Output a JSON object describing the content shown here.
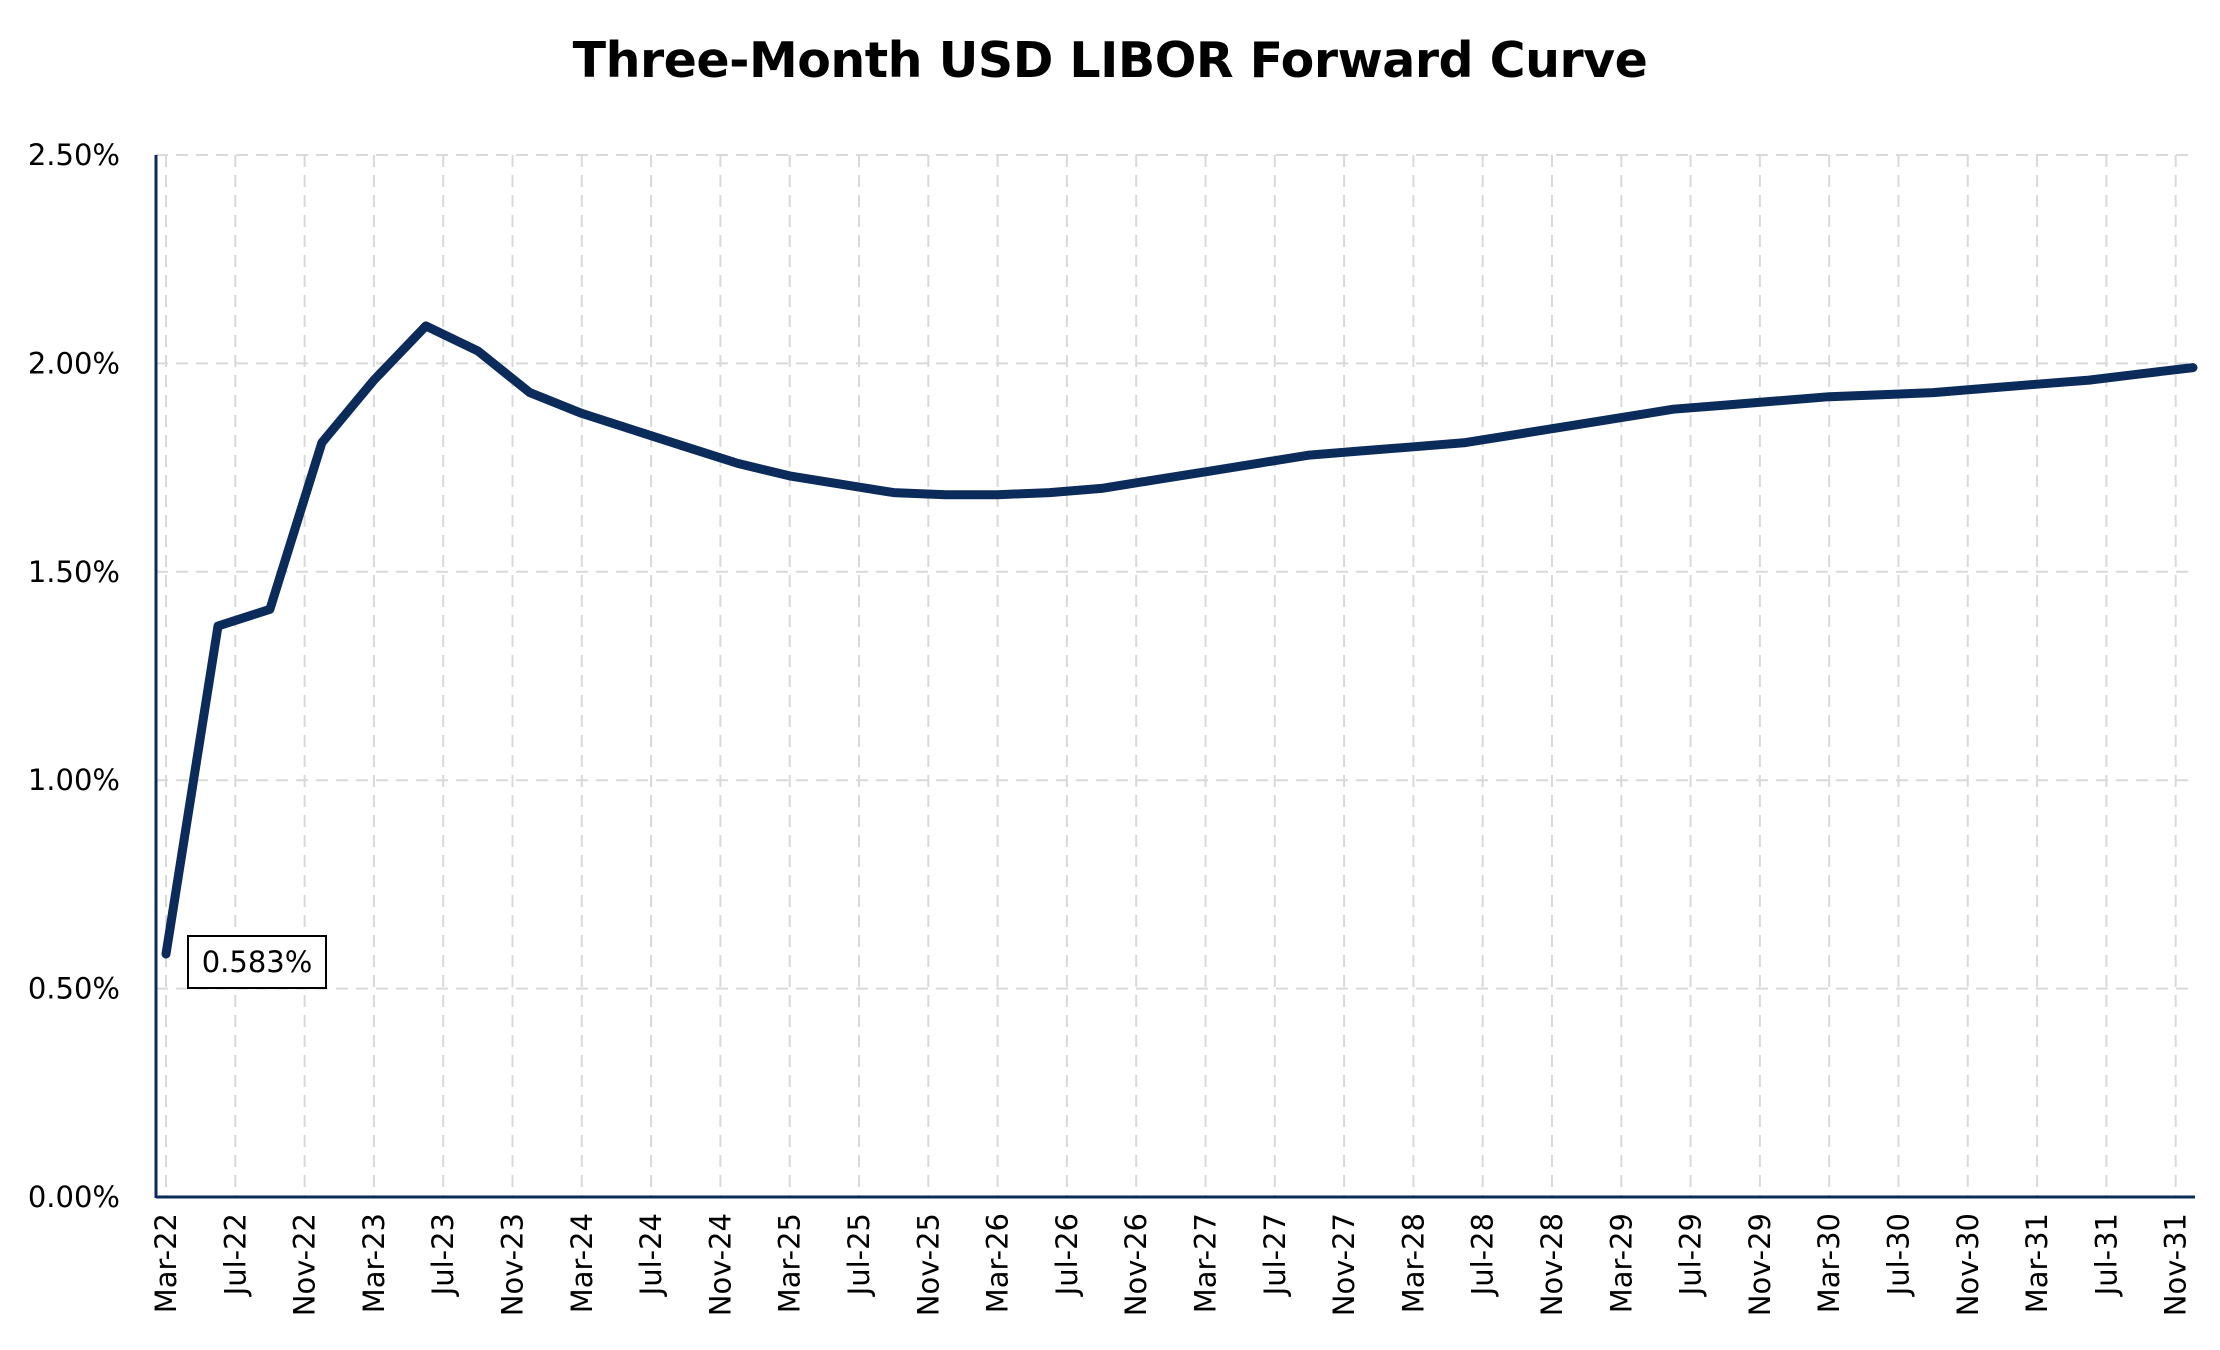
{
  "chart_data": {
    "type": "line",
    "title": "Three-Month USD LIBOR Forward Curve",
    "xlabel": "",
    "ylabel": "",
    "ylim": [
      0,
      2.5
    ],
    "yticks": [
      "0.00%",
      "0.50%",
      "1.00%",
      "1.50%",
      "2.00%",
      "2.50%"
    ],
    "ytick_values": [
      0,
      0.5,
      1.0,
      1.5,
      2.0,
      2.5
    ],
    "xlim": [
      "2022-03",
      "2031-12"
    ],
    "x_axis_type": "date",
    "xticks": [
      "Mar-22",
      "Jul-22",
      "Nov-22",
      "Mar-23",
      "Jul-23",
      "Nov-23",
      "Mar-24",
      "Jul-24",
      "Nov-24",
      "Mar-25",
      "Jul-25",
      "Nov-25",
      "Mar-26",
      "Jul-26",
      "Nov-26",
      "Mar-27",
      "Jul-27",
      "Nov-27",
      "Mar-28",
      "Jul-28",
      "Nov-28",
      "Mar-29",
      "Jul-29",
      "Nov-29",
      "Mar-30",
      "Jul-30",
      "Nov-30",
      "Mar-31",
      "Jul-31",
      "Nov-31"
    ],
    "grid": true,
    "legend": "none",
    "line_color": "#0b2b5a",
    "grid_color": "#d9d9d9",
    "series": [
      {
        "name": "",
        "x": [
          "2022-03",
          "2022-06",
          "2022-09",
          "2022-12",
          "2023-03",
          "2023-06",
          "2023-09",
          "2023-12",
          "2024-03",
          "2024-06",
          "2024-09",
          "2024-12",
          "2025-03",
          "2025-06",
          "2025-09",
          "2025-12",
          "2026-03",
          "2026-06",
          "2026-09",
          "2026-12",
          "2027-03",
          "2027-06",
          "2027-09",
          "2027-12",
          "2028-03",
          "2028-06",
          "2028-09",
          "2028-12",
          "2029-03",
          "2029-06",
          "2029-09",
          "2029-12",
          "2030-03",
          "2030-06",
          "2030-09",
          "2030-12",
          "2031-03",
          "2031-06",
          "2031-09",
          "2031-12"
        ],
        "values": [
          0.583,
          1.37,
          1.41,
          1.81,
          1.96,
          2.09,
          2.03,
          1.93,
          1.88,
          1.84,
          1.8,
          1.76,
          1.73,
          1.71,
          1.69,
          1.685,
          1.685,
          1.69,
          1.7,
          1.72,
          1.74,
          1.76,
          1.78,
          1.79,
          1.8,
          1.81,
          1.83,
          1.85,
          1.87,
          1.89,
          1.9,
          1.91,
          1.92,
          1.925,
          1.93,
          1.94,
          1.95,
          1.96,
          1.975,
          1.99
        ]
      }
    ],
    "annotations": [
      {
        "text": "0.583%",
        "x": "2022-03",
        "value": 0.583
      }
    ]
  }
}
